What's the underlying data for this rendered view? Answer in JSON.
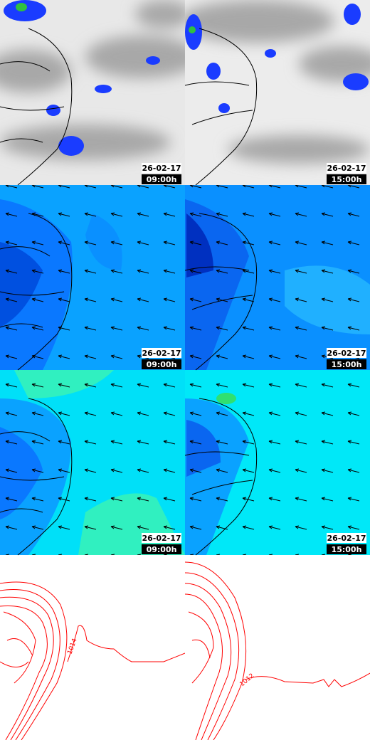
{
  "panels": [
    {
      "date": "26-02-17",
      "time": "09:00h"
    },
    {
      "date": "26-02-17",
      "time": "15:00h"
    },
    {
      "date": "26-02-17",
      "time": "09:00h"
    },
    {
      "date": "26-02-17",
      "time": "15:00h"
    },
    {
      "date": "26-02-17",
      "time": "09:00h"
    },
    {
      "date": "26-02-17",
      "time": "15:00h"
    }
  ],
  "contour_labels": [
    "1014",
    "1012"
  ]
}
